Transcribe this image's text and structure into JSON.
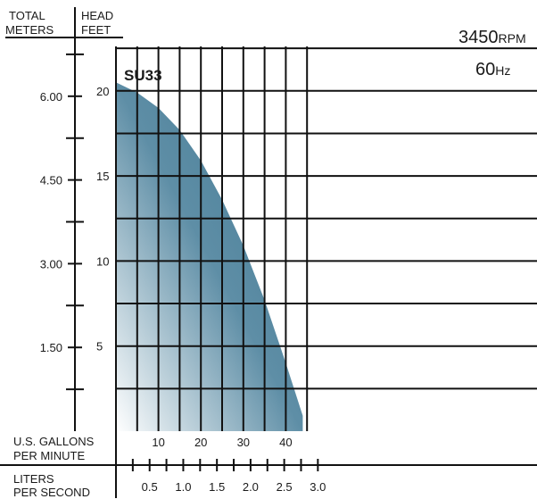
{
  "header": {
    "meters_line1": "TOTAL",
    "meters_line2": "METERS",
    "feet_line1": "HEAD",
    "feet_line2": "FEET"
  },
  "model": "SU33",
  "rpm_value": "3450",
  "rpm_unit": "RPM",
  "hz_value": "60",
  "hz_unit": "Hz",
  "gpm_label_line1": "U.S. GALLONS",
  "gpm_label_line2": "PER MINUTE",
  "lps_label_line1": "LITERS",
  "lps_label_line2": "PER SECOND",
  "colors": {
    "curve_fill": "#4a7f98",
    "curve_light": "#ffffff",
    "grid": "#111111"
  },
  "chart_data": {
    "type": "area",
    "title": "SU33",
    "xlabel": "U.S. GALLONS PER MINUTE",
    "ylabel": "HEAD FEET",
    "xlim": [
      0,
      45
    ],
    "ylim": [
      0,
      24
    ],
    "grid": true,
    "x_ticks": [
      "10",
      "20",
      "30",
      "40"
    ],
    "y_ticks_feet": [
      "5",
      "10",
      "15",
      "20"
    ],
    "y_ticks_meters": [
      "1.50",
      "3.00",
      "4.50",
      "6.00"
    ],
    "secondary_x_ticks": [
      "0.5",
      "1.0",
      "1.5",
      "2.0",
      "2.5",
      "3.0"
    ],
    "series": [
      {
        "name": "SU33",
        "x": [
          0,
          5,
          10,
          15,
          20,
          25,
          30,
          35,
          40,
          44
        ],
        "y": [
          20.5,
          19.9,
          19.0,
          17.7,
          15.9,
          13.6,
          10.9,
          7.7,
          4.0,
          0.9
        ]
      }
    ]
  }
}
